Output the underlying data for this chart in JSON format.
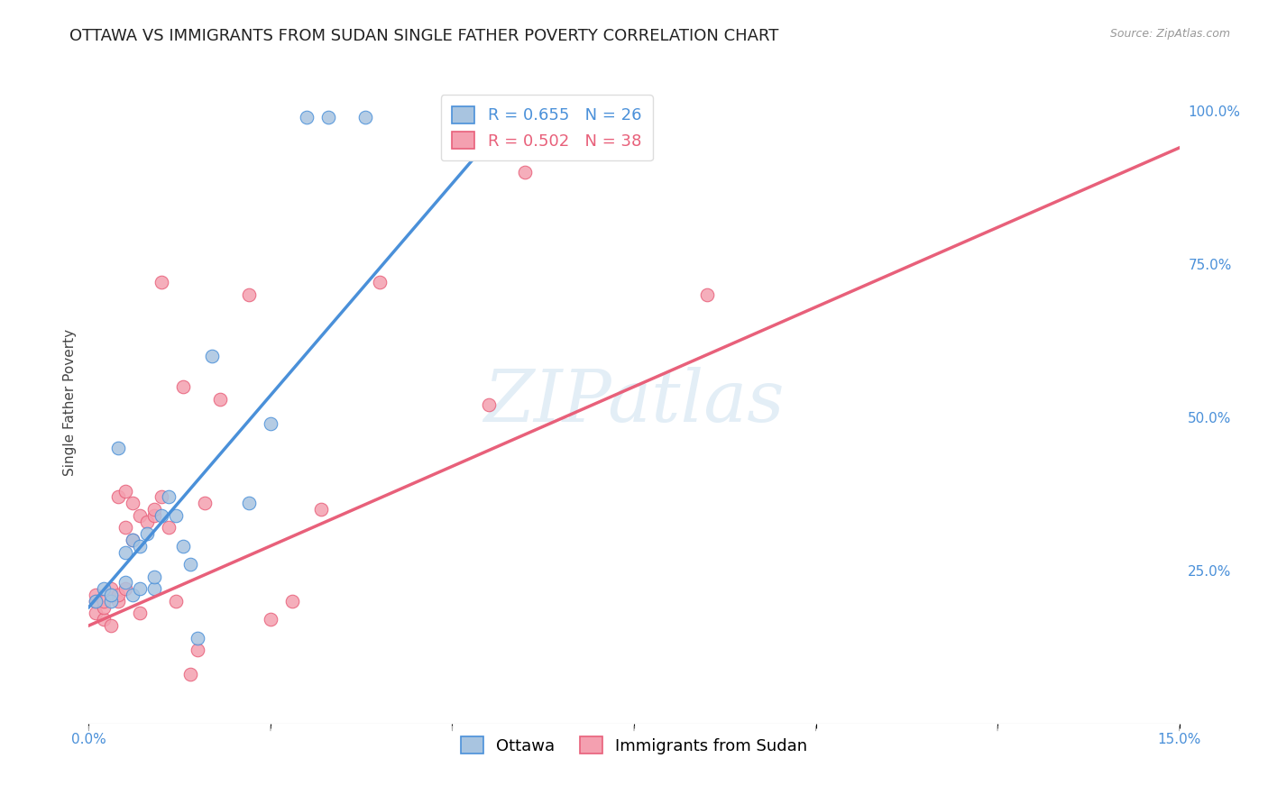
{
  "title": "OTTAWA VS IMMIGRANTS FROM SUDAN SINGLE FATHER POVERTY CORRELATION CHART",
  "source": "Source: ZipAtlas.com",
  "ylabel": "Single Father Poverty",
  "ylabel_right_ticks": [
    "100.0%",
    "75.0%",
    "50.0%",
    "25.0%"
  ],
  "ylabel_right_vals": [
    1.0,
    0.75,
    0.5,
    0.25
  ],
  "watermark": "ZIPatlas",
  "legend_blue_r": "R = 0.655",
  "legend_blue_n": "N = 26",
  "legend_pink_r": "R = 0.502",
  "legend_pink_n": "N = 38",
  "ottawa_color": "#a8c4e0",
  "sudan_color": "#f4a0b0",
  "blue_line_color": "#4a90d9",
  "pink_line_color": "#e8607a",
  "ottawa_scatter_x": [
    0.001,
    0.002,
    0.003,
    0.003,
    0.004,
    0.005,
    0.005,
    0.006,
    0.006,
    0.007,
    0.007,
    0.008,
    0.009,
    0.009,
    0.01,
    0.011,
    0.012,
    0.013,
    0.014,
    0.015,
    0.017,
    0.022,
    0.025,
    0.038,
    0.03,
    0.033
  ],
  "ottawa_scatter_y": [
    0.2,
    0.22,
    0.2,
    0.21,
    0.45,
    0.23,
    0.28,
    0.3,
    0.21,
    0.22,
    0.29,
    0.31,
    0.22,
    0.24,
    0.34,
    0.37,
    0.34,
    0.29,
    0.26,
    0.14,
    0.6,
    0.36,
    0.49,
    0.99,
    0.99,
    0.99
  ],
  "sudan_scatter_x": [
    0.001,
    0.001,
    0.001,
    0.002,
    0.002,
    0.002,
    0.003,
    0.003,
    0.004,
    0.004,
    0.004,
    0.005,
    0.005,
    0.005,
    0.006,
    0.006,
    0.007,
    0.007,
    0.008,
    0.009,
    0.009,
    0.01,
    0.011,
    0.012,
    0.013,
    0.014,
    0.015,
    0.016,
    0.018,
    0.022,
    0.025,
    0.028,
    0.032,
    0.04,
    0.055,
    0.085,
    0.06,
    0.01
  ],
  "sudan_scatter_y": [
    0.2,
    0.21,
    0.18,
    0.17,
    0.19,
    0.2,
    0.16,
    0.22,
    0.2,
    0.37,
    0.21,
    0.38,
    0.32,
    0.22,
    0.3,
    0.36,
    0.18,
    0.34,
    0.33,
    0.34,
    0.35,
    0.37,
    0.32,
    0.2,
    0.55,
    0.08,
    0.12,
    0.36,
    0.53,
    0.7,
    0.17,
    0.2,
    0.35,
    0.72,
    0.52,
    0.7,
    0.9,
    0.72
  ],
  "xlim": [
    0.0,
    0.15
  ],
  "ylim": [
    0.0,
    1.05
  ],
  "blue_line_x": [
    0.0,
    0.06
  ],
  "blue_line_y": [
    0.19,
    1.02
  ],
  "pink_line_x": [
    0.0,
    0.15
  ],
  "pink_line_y": [
    0.16,
    0.94
  ],
  "x_tick_positions": [
    0.0,
    0.025,
    0.05,
    0.075,
    0.1,
    0.125,
    0.15
  ],
  "x_tick_labels": [
    "0.0%",
    "",
    "",
    "",
    "",
    "",
    "15.0%"
  ],
  "marker_size": 110,
  "grid_color": "#d8d8d8",
  "background_color": "#ffffff",
  "title_fontsize": 13,
  "axis_label_fontsize": 11,
  "tick_fontsize": 11,
  "legend_fontsize": 13,
  "tick_color": "#4a90d9"
}
